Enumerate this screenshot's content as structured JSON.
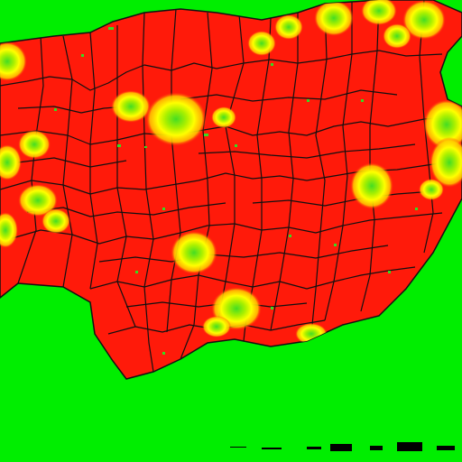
{
  "map": {
    "colors": {
      "background": "#00ee00",
      "region_fill": "#ff1a0a",
      "hotspot_outer": "#ffff00",
      "hotspot_inner": "#33dd22",
      "border": "#111111",
      "legend": "#000000"
    },
    "scale_bar_segments": 8
  }
}
